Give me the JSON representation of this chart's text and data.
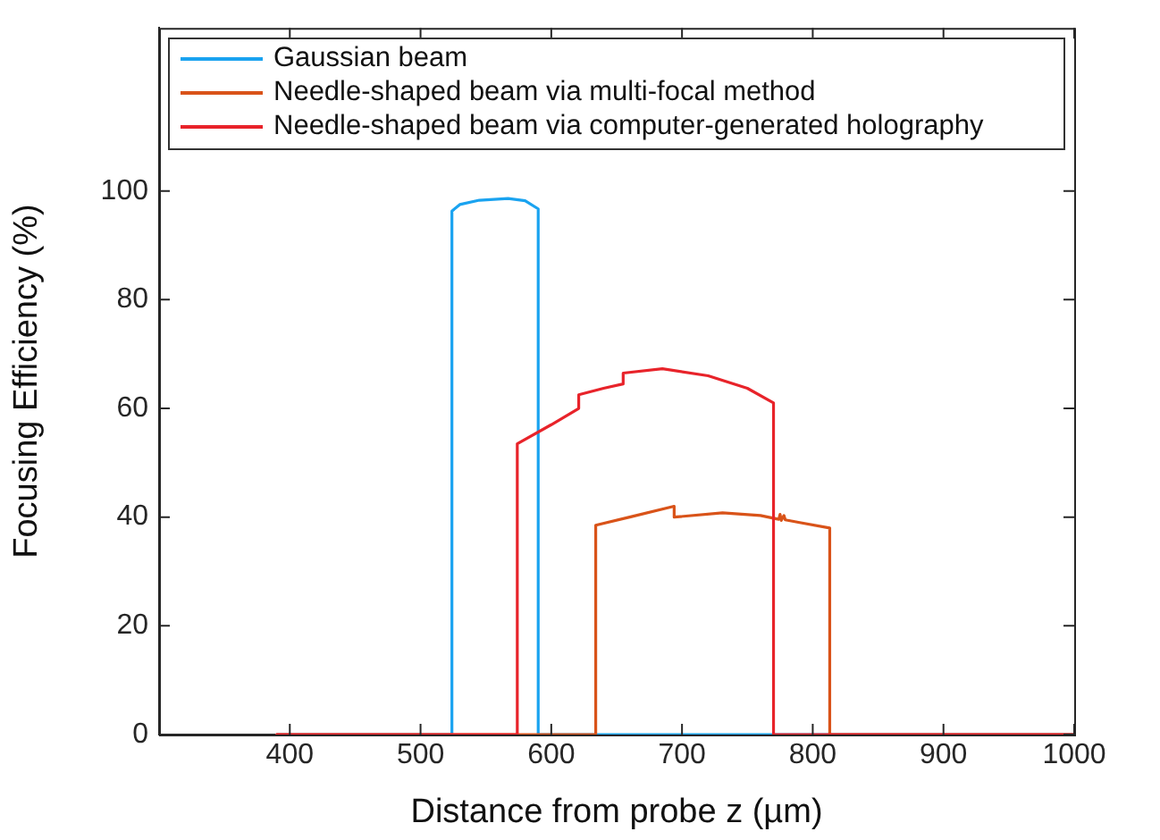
{
  "chart_data": {
    "type": "line",
    "xlabel": "Distance from probe z (µm)",
    "ylabel": "Focusing Efficiency (%)",
    "xlim": [
      300,
      1000
    ],
    "xticks": [
      400,
      500,
      600,
      700,
      800,
      900,
      1000
    ],
    "ylim": [
      0,
      130
    ],
    "yticks": [
      0,
      20,
      40,
      60,
      80,
      100
    ],
    "legend": "top",
    "marker": "none",
    "line_style": "solid",
    "series": [
      {
        "name": "Gaussian beam",
        "color": "#1aa3f0",
        "x": [
          390,
          524,
          524,
          530,
          545,
          567,
          580,
          590,
          590,
          1000
        ],
        "values": [
          0,
          0,
          96.3,
          97.5,
          98.3,
          98.6,
          98.2,
          96.7,
          0,
          0
        ]
      },
      {
        "name": "Needle-shaped beam via multi-focal method",
        "color": "#d95319",
        "x": [
          390,
          634,
          634,
          660,
          694,
          694,
          731,
          760,
          774,
          775,
          776,
          778,
          779,
          790,
          813,
          813,
          1000
        ],
        "values": [
          0,
          0,
          38.5,
          40,
          42,
          40,
          40.8,
          40.3,
          39.6,
          40.5,
          39.4,
          40.3,
          39.5,
          39,
          38,
          0,
          0
        ]
      },
      {
        "name": "Needle-shaped beam via computer-generated holography",
        "color": "#e8232a",
        "x": [
          390,
          574,
          574,
          600,
          621,
          621,
          640,
          655,
          655,
          685,
          720,
          750,
          770,
          770,
          1000
        ],
        "values": [
          0,
          0,
          53.5,
          57,
          60,
          62.5,
          63.7,
          64.5,
          66.5,
          67.3,
          66,
          63.7,
          61,
          0,
          0
        ]
      }
    ]
  }
}
